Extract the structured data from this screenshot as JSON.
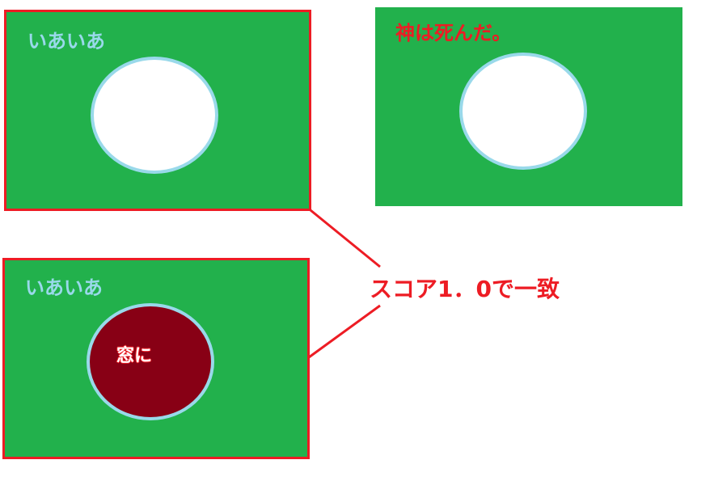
{
  "panels": {
    "top_left": {
      "label": "いあいあ"
    },
    "top_right": {
      "label": "神は死んだ。"
    },
    "bottom_left": {
      "label": "いあいあ",
      "ellipse_label": "窓に"
    }
  },
  "match": {
    "label": "スコア1．0で一致"
  },
  "colors": {
    "panel_green": "#22b14c",
    "frame_red": "#ed1c24",
    "ellipse_border": "#99d9ea",
    "ellipse_dark": "#880015"
  }
}
